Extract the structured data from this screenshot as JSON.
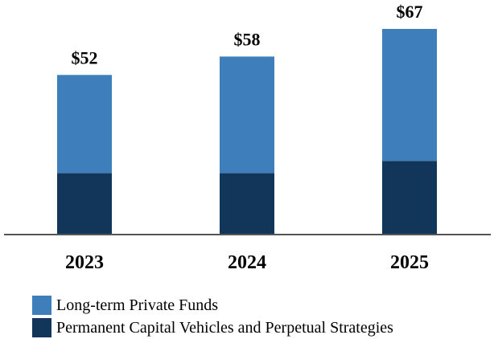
{
  "chart_data": {
    "type": "bar",
    "stacked": true,
    "categories": [
      "2023",
      "2024",
      "2025"
    ],
    "totals": [
      "$52",
      "$58",
      "$67"
    ],
    "series": [
      {
        "name": "Permanent Capital Vehicles and Perpetual Strategies",
        "color": "#12365a",
        "values": [
          20,
          20,
          24
        ]
      },
      {
        "name": "Long-term Private Funds",
        "color": "#3e7fbb",
        "values": [
          32,
          38,
          43
        ]
      }
    ],
    "ylim": [
      0,
      67
    ],
    "legend_position": "bottom-left",
    "grid": false
  }
}
